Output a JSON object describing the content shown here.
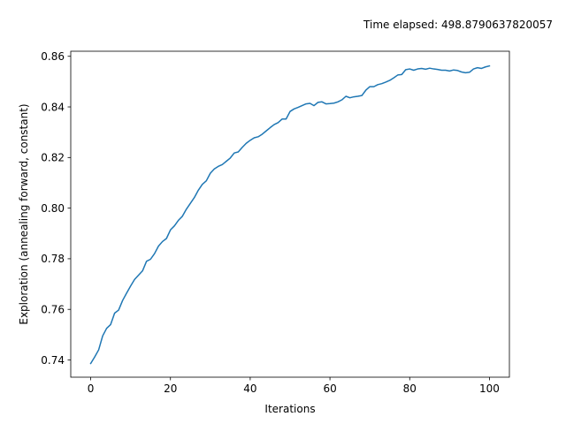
{
  "header": {
    "elapsed_text": "Time elapsed: 498.8790637820057"
  },
  "chart_data": {
    "type": "line",
    "title": "",
    "xlabel": "Iterations",
    "ylabel": "Exploration (annealing forward, constant)",
    "xlim": [
      -5,
      105
    ],
    "ylim": [
      0.7332,
      0.862
    ],
    "xticks": [
      0,
      20,
      40,
      60,
      80,
      100
    ],
    "yticks": [
      0.74,
      0.76,
      0.78,
      0.8,
      0.82,
      0.84,
      0.86
    ],
    "xtick_labels": [
      "0",
      "20",
      "40",
      "60",
      "80",
      "100"
    ],
    "ytick_labels": [
      "0.74",
      "0.76",
      "0.78",
      "0.80",
      "0.82",
      "0.84",
      "0.86"
    ],
    "grid": false,
    "legend": "none",
    "series": [
      {
        "color": "#1f77b4",
        "x": [
          0,
          1,
          2,
          3,
          4,
          5,
          6,
          7,
          8,
          9,
          10,
          11,
          12,
          13,
          14,
          15,
          16,
          17,
          18,
          19,
          20,
          21,
          22,
          23,
          24,
          25,
          26,
          27,
          28,
          29,
          30,
          31,
          32,
          33,
          34,
          35,
          36,
          37,
          38,
          39,
          40,
          41,
          42,
          43,
          44,
          45,
          46,
          47,
          48,
          49,
          50,
          51,
          52,
          53,
          54,
          55,
          56,
          57,
          58,
          59,
          60,
          61,
          62,
          63,
          64,
          65,
          66,
          67,
          68,
          69,
          70,
          71,
          72,
          73,
          74,
          75,
          76,
          77,
          78,
          79,
          80,
          81,
          82,
          83,
          84,
          85,
          86,
          87,
          88,
          89,
          90,
          91,
          92,
          93,
          94,
          95,
          96,
          97,
          98,
          99,
          100
        ],
        "y": [
          0.7386,
          0.7412,
          0.744,
          0.7495,
          0.7525,
          0.754,
          0.7585,
          0.7597,
          0.7635,
          0.7664,
          0.7692,
          0.7718,
          0.7735,
          0.7752,
          0.779,
          0.7798,
          0.782,
          0.785,
          0.7868,
          0.788,
          0.7914,
          0.793,
          0.7952,
          0.7968,
          0.7996,
          0.8019,
          0.8042,
          0.8071,
          0.8094,
          0.8108,
          0.8138,
          0.8155,
          0.8165,
          0.8172,
          0.8185,
          0.8198,
          0.8218,
          0.8222,
          0.824,
          0.8256,
          0.8268,
          0.8278,
          0.8282,
          0.8292,
          0.8305,
          0.8318,
          0.833,
          0.8338,
          0.8352,
          0.8352,
          0.8382,
          0.8392,
          0.8398,
          0.8405,
          0.8412,
          0.8414,
          0.8405,
          0.8418,
          0.842,
          0.8412,
          0.8413,
          0.8415,
          0.842,
          0.8428,
          0.8442,
          0.8436,
          0.844,
          0.8442,
          0.8445,
          0.8466,
          0.848,
          0.848,
          0.8488,
          0.8492,
          0.8498,
          0.8505,
          0.8515,
          0.8526,
          0.8528,
          0.8547,
          0.855,
          0.8545,
          0.855,
          0.8552,
          0.8549,
          0.8553,
          0.855,
          0.8548,
          0.8545,
          0.8545,
          0.8542,
          0.8546,
          0.8544,
          0.8538,
          0.8535,
          0.8537,
          0.855,
          0.8555,
          0.8552,
          0.8558,
          0.8562
        ]
      }
    ]
  }
}
